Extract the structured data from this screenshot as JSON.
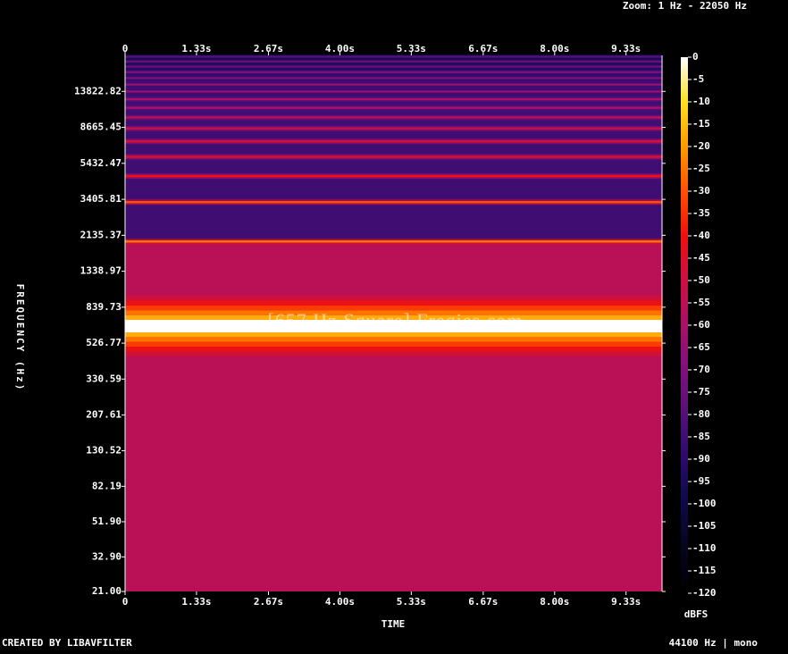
{
  "chart_data": {
    "type": "spectrogram",
    "zoom": "Zoom: 1 Hz - 22050 Hz",
    "watermark": "[657 Hz Square] Freqies.com",
    "x_label": "TIME",
    "y_label": "FREQUENCY (Hz)",
    "credit": "CREATED BY LIBAVFILTER",
    "format": "44100 Hz | mono",
    "xlim": [
      0,
      10
    ],
    "xticks": [
      0,
      {
        "value": 1.33,
        "label": "1.33s"
      },
      {
        "value": 2.67,
        "label": "2.67s"
      },
      {
        "value": 4.0,
        "label": "4.00s"
      },
      {
        "value": 5.33,
        "label": "5.33s"
      },
      {
        "value": 6.67,
        "label": "6.67s"
      },
      {
        "value": 8.0,
        "label": "8.00s"
      },
      {
        "value": 9.33,
        "label": "9.33s"
      }
    ],
    "ylim": [
      21,
      22050
    ],
    "yscale": "log",
    "yticks": [
      {
        "value": 21,
        "label": "21.00"
      },
      {
        "value": 32.9,
        "label": "32.90"
      },
      {
        "value": 51.9,
        "label": "51.90"
      },
      82.19,
      130.52,
      207.61,
      330.59,
      526.77,
      839.73,
      1338.97,
      2135.37,
      3405.81,
      5432.47,
      8665.45,
      13822.82
    ],
    "colormap": [
      "#000000",
      "#05051e",
      "#0c0a45",
      "#2a0a6a",
      "#55107a",
      "#80107a",
      "#a8106a",
      "#cc1040",
      "#ee1010",
      "#ff5000",
      "#ff9a00",
      "#ffe020",
      "#ffffff"
    ],
    "colorbar": {
      "label": "dBFS",
      "lim": [
        -120,
        0
      ],
      "ticks": [
        0,
        -5,
        -10,
        -15,
        -20,
        -25,
        -30,
        -35,
        -40,
        -45,
        -50,
        -55,
        -60,
        -65,
        -70,
        -75,
        -80,
        -85,
        -90,
        -95,
        -100,
        -105,
        -110,
        -115,
        -120
      ]
    },
    "noise_floor": [
      {
        "from": 21,
        "to": 1971,
        "level": -55
      },
      {
        "from": 1971,
        "to": 22050,
        "level": -85
      }
    ],
    "harmonics": [
      {
        "freq": 657,
        "level": 0
      },
      {
        "freq": 1971,
        "level": -25
      },
      {
        "freq": 3285,
        "level": -30
      },
      {
        "freq": 4599,
        "level": -40
      },
      {
        "freq": 5913,
        "level": -45
      },
      {
        "freq": 7227,
        "level": -45
      },
      {
        "freq": 8541,
        "level": -50
      },
      {
        "freq": 9855,
        "level": -55
      },
      {
        "freq": 11169,
        "level": -60
      },
      {
        "freq": 12483,
        "level": -60
      },
      {
        "freq": 13797,
        "level": -65
      },
      {
        "freq": 15111,
        "level": -65
      },
      {
        "freq": 16425,
        "level": -70
      },
      {
        "freq": 17739,
        "level": -70
      },
      {
        "freq": 19053,
        "level": -75
      },
      {
        "freq": 20367,
        "level": -75
      },
      {
        "freq": 21681,
        "level": -80
      }
    ]
  }
}
